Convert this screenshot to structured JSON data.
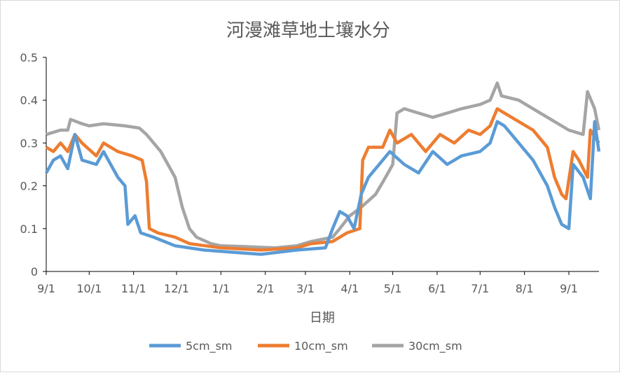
{
  "chart_data": {
    "type": "line",
    "title": "河漫滩草地土壤水分",
    "xlabel": "日期",
    "ylabel": "",
    "ylim": [
      0,
      0.5
    ],
    "yticks": [
      "0",
      "0.1",
      "0.2",
      "0.3",
      "0.4",
      "0.5"
    ],
    "ytick_values": [
      0,
      0.1,
      0.2,
      0.3,
      0.4,
      0.5
    ],
    "xlim_days": [
      0,
      386
    ],
    "xticks": [
      "9/1",
      "10/1",
      "11/1",
      "12/1",
      "1/1",
      "2/1",
      "3/1",
      "4/1",
      "5/1",
      "6/1",
      "7/1",
      "8/1",
      "9/1"
    ],
    "xtick_days": [
      0,
      30,
      61,
      91,
      122,
      153,
      181,
      212,
      242,
      273,
      303,
      334,
      365
    ],
    "grid": false,
    "legend_position": "bottom",
    "series": [
      {
        "name": "5cm_sm",
        "color": "#5b9bd5",
        "x": [
          0,
          5,
          10,
          15,
          20,
          25,
          35,
          40,
          50,
          55,
          57,
          62,
          66,
          75,
          90,
          110,
          130,
          150,
          175,
          195,
          200,
          205,
          210,
          215,
          220,
          225,
          235,
          240,
          250,
          260,
          270,
          280,
          290,
          303,
          310,
          315,
          320,
          330,
          340,
          350,
          355,
          360,
          365,
          368,
          375,
          380,
          383,
          386
        ],
        "y": [
          0.23,
          0.26,
          0.27,
          0.24,
          0.32,
          0.26,
          0.25,
          0.28,
          0.22,
          0.2,
          0.11,
          0.13,
          0.09,
          0.08,
          0.06,
          0.05,
          0.045,
          0.04,
          0.05,
          0.055,
          0.1,
          0.14,
          0.13,
          0.1,
          0.18,
          0.22,
          0.26,
          0.28,
          0.25,
          0.23,
          0.28,
          0.25,
          0.27,
          0.28,
          0.3,
          0.35,
          0.34,
          0.3,
          0.26,
          0.2,
          0.15,
          0.11,
          0.1,
          0.25,
          0.22,
          0.17,
          0.35,
          0.28
        ]
      },
      {
        "name": "10cm_sm",
        "color": "#ed7d31",
        "x": [
          0,
          5,
          10,
          15,
          20,
          25,
          35,
          40,
          50,
          60,
          67,
          70,
          72,
          78,
          90,
          100,
          122,
          150,
          175,
          185,
          200,
          210,
          219,
          221,
          225,
          235,
          240,
          245,
          255,
          265,
          275,
          285,
          295,
          303,
          310,
          315,
          320,
          330,
          340,
          350,
          355,
          360,
          363,
          368,
          372,
          378,
          380,
          386
        ],
        "y": [
          0.29,
          0.28,
          0.3,
          0.28,
          0.32,
          0.3,
          0.27,
          0.3,
          0.28,
          0.27,
          0.26,
          0.21,
          0.1,
          0.09,
          0.08,
          0.065,
          0.055,
          0.05,
          0.055,
          0.065,
          0.07,
          0.09,
          0.1,
          0.26,
          0.29,
          0.29,
          0.33,
          0.3,
          0.32,
          0.28,
          0.32,
          0.3,
          0.33,
          0.32,
          0.34,
          0.38,
          0.37,
          0.35,
          0.33,
          0.29,
          0.22,
          0.18,
          0.17,
          0.28,
          0.26,
          0.22,
          0.33,
          0.3
        ]
      },
      {
        "name": "30cm_sm",
        "color": "#a5a5a5",
        "x": [
          0,
          10,
          15,
          17,
          25,
          30,
          40,
          55,
          65,
          70,
          80,
          90,
          95,
          100,
          105,
          115,
          122,
          140,
          160,
          175,
          185,
          200,
          205,
          212,
          220,
          230,
          237,
          242,
          245,
          250,
          260,
          270,
          280,
          290,
          303,
          310,
          315,
          318,
          330,
          345,
          355,
          365,
          375,
          378,
          383,
          386
        ],
        "y": [
          0.32,
          0.33,
          0.33,
          0.355,
          0.345,
          0.34,
          0.345,
          0.34,
          0.335,
          0.32,
          0.28,
          0.22,
          0.15,
          0.1,
          0.08,
          0.065,
          0.06,
          0.058,
          0.055,
          0.06,
          0.07,
          0.08,
          0.1,
          0.13,
          0.15,
          0.18,
          0.22,
          0.25,
          0.37,
          0.38,
          0.37,
          0.36,
          0.37,
          0.38,
          0.39,
          0.4,
          0.44,
          0.41,
          0.4,
          0.37,
          0.35,
          0.33,
          0.32,
          0.42,
          0.38,
          0.33
        ]
      }
    ]
  }
}
